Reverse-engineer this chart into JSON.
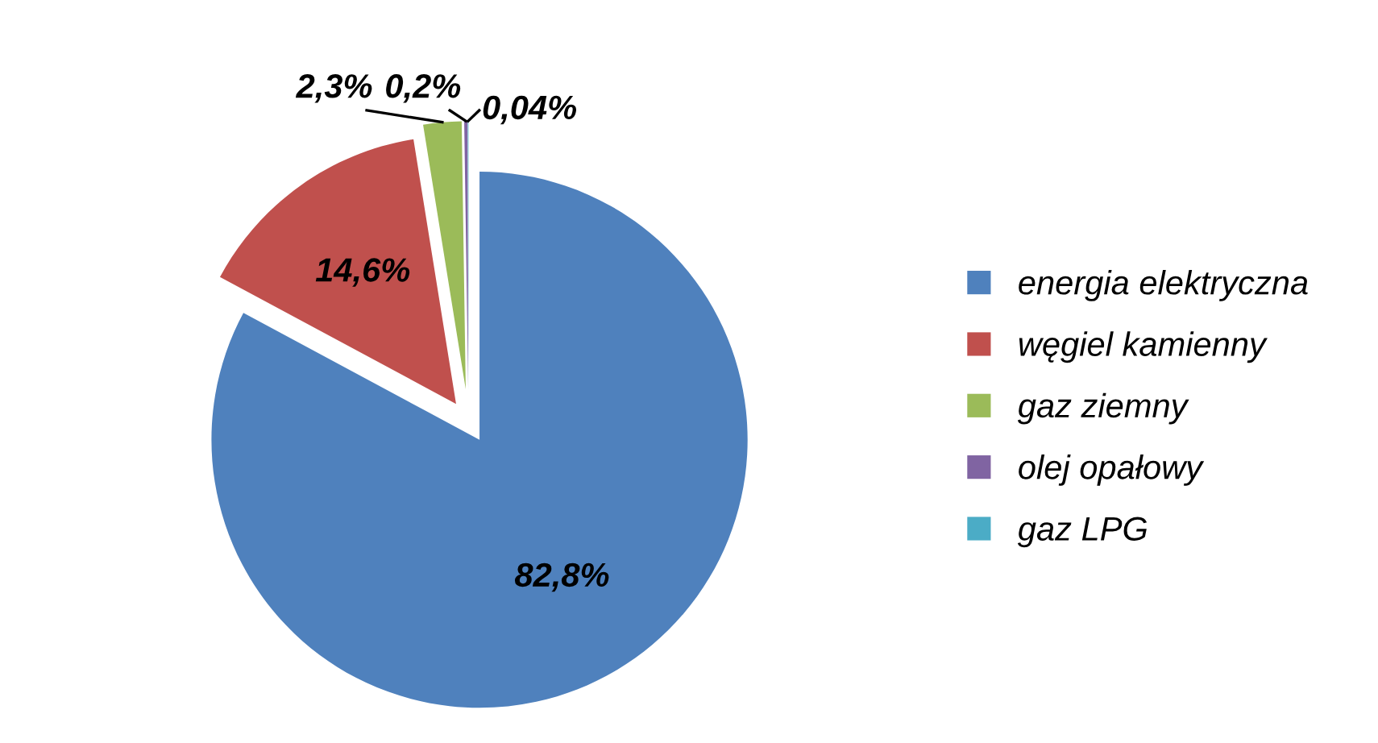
{
  "chart_data": {
    "type": "pie",
    "categories": [
      "energia elektryczna",
      "węgiel kamienny",
      "gaz ziemny",
      "olej opałowy",
      "gaz LPG"
    ],
    "values": [
      82.8,
      14.6,
      2.3,
      0.2,
      0.04
    ],
    "colors": [
      "#4f81bd",
      "#c0504d",
      "#9bbb59",
      "#8064a2",
      "#4bacc6"
    ],
    "value_labels": [
      "82,8%",
      "14,6%",
      "2,3%",
      "0,2%",
      "0,04%"
    ],
    "legend": "right"
  }
}
